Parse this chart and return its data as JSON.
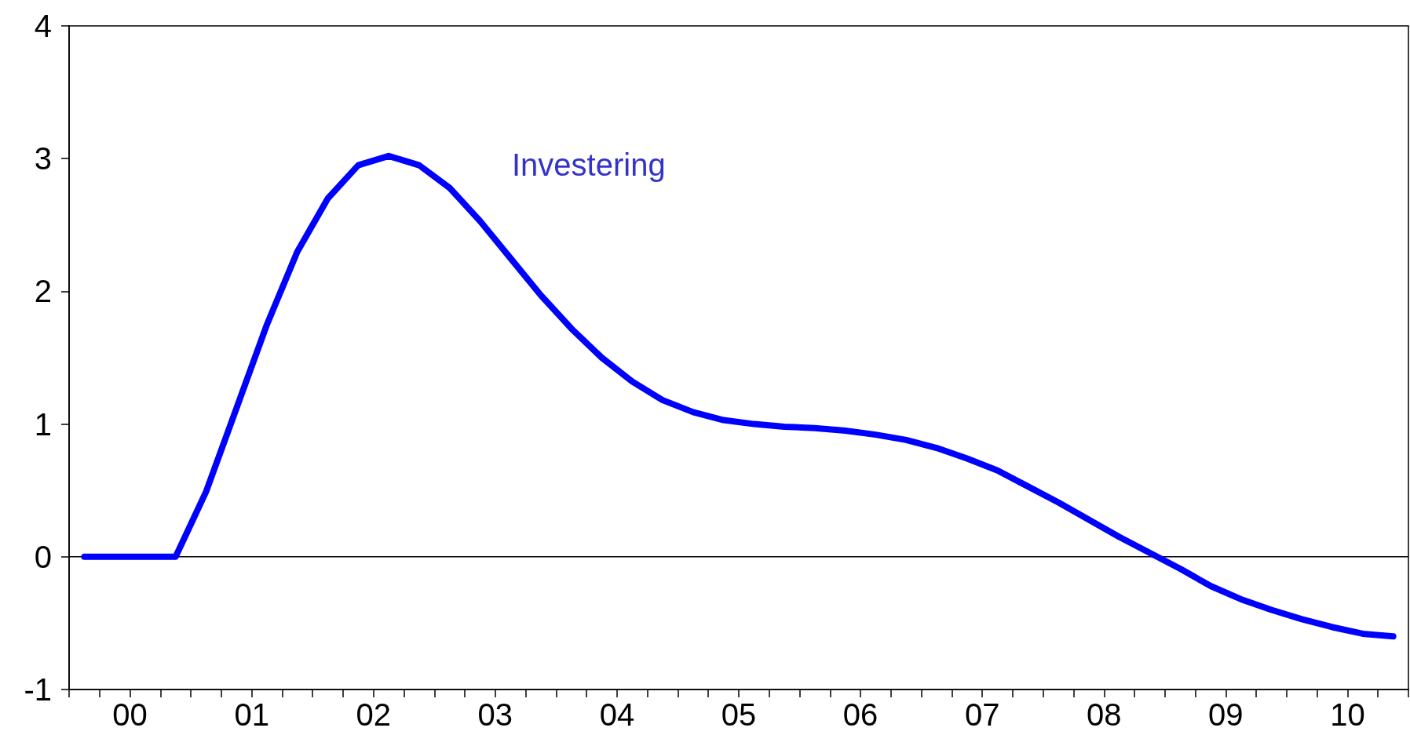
{
  "chart_data": {
    "type": "line",
    "x": [
      -0.375,
      -0.125,
      0.125,
      0.375,
      0.625,
      0.875,
      1.125,
      1.375,
      1.625,
      1.875,
      2.125,
      2.375,
      2.625,
      2.875,
      3.125,
      3.375,
      3.625,
      3.875,
      4.125,
      4.375,
      4.625,
      4.875,
      5.125,
      5.375,
      5.625,
      5.875,
      6.125,
      6.375,
      6.625,
      6.875,
      7.125,
      7.375,
      7.625,
      7.875,
      8.125,
      8.375,
      8.625,
      8.875,
      9.125,
      9.375,
      9.625,
      9.875,
      10.125,
      10.375
    ],
    "series": [
      {
        "color": "#0000ff",
        "values": [
          0,
          0,
          0,
          0,
          0.49,
          1.12,
          1.75,
          2.3,
          2.7,
          2.95,
          3.02,
          2.95,
          2.78,
          2.53,
          2.25,
          1.97,
          1.72,
          1.5,
          1.32,
          1.18,
          1.09,
          1.03,
          1.0,
          0.98,
          0.97,
          0.95,
          0.92,
          0.88,
          0.82,
          0.74,
          0.65,
          0.53,
          0.41,
          0.28,
          0.15,
          0.03,
          -0.09,
          -0.22,
          -0.32,
          -0.4,
          -0.47,
          -0.53,
          -0.58,
          -0.6
        ]
      }
    ],
    "xlim": [
      -0.5,
      10.5
    ],
    "xticks": [
      {
        "value": -0.25,
        "label": null
      },
      {
        "value": 0,
        "label": "00"
      },
      {
        "value": 0.25,
        "label": null
      },
      {
        "value": 0.5,
        "label": null
      },
      {
        "value": 0.75,
        "label": null
      },
      {
        "value": 1,
        "label": "01"
      },
      {
        "value": 1.25,
        "label": null
      },
      {
        "value": 1.5,
        "label": null
      },
      {
        "value": 1.75,
        "label": null
      },
      {
        "value": 2,
        "label": "02"
      },
      {
        "value": 2.25,
        "label": null
      },
      {
        "value": 2.5,
        "label": null
      },
      {
        "value": 2.75,
        "label": null
      },
      {
        "value": 3,
        "label": "03"
      },
      {
        "value": 3.25,
        "label": null
      },
      {
        "value": 3.5,
        "label": null
      },
      {
        "value": 3.75,
        "label": null
      },
      {
        "value": 4,
        "label": "04"
      },
      {
        "value": 4.25,
        "label": null
      },
      {
        "value": 4.5,
        "label": null
      },
      {
        "value": 4.75,
        "label": null
      },
      {
        "value": 5,
        "label": "05"
      },
      {
        "value": 5.25,
        "label": null
      },
      {
        "value": 5.5,
        "label": null
      },
      {
        "value": 5.75,
        "label": null
      },
      {
        "value": 6,
        "label": "06"
      },
      {
        "value": 6.25,
        "label": null
      },
      {
        "value": 6.5,
        "label": null
      },
      {
        "value": 6.75,
        "label": null
      },
      {
        "value": 7,
        "label": "07"
      },
      {
        "value": 7.25,
        "label": null
      },
      {
        "value": 7.5,
        "label": null
      },
      {
        "value": 7.75,
        "label": null
      },
      {
        "value": 8,
        "label": "08"
      },
      {
        "value": 8.25,
        "label": null
      },
      {
        "value": 8.5,
        "label": null
      },
      {
        "value": 8.75,
        "label": null
      },
      {
        "value": 9,
        "label": "09"
      },
      {
        "value": 9.25,
        "label": null
      },
      {
        "value": 9.5,
        "label": null
      },
      {
        "value": 9.75,
        "label": null
      },
      {
        "value": 10,
        "label": "10"
      },
      {
        "value": 10.25,
        "label": null
      }
    ],
    "ylim": [
      -1,
      4
    ],
    "yticks": [
      -1,
      0,
      1,
      2,
      3,
      4
    ],
    "ref_lines": [
      {
        "axis": "y",
        "value": 0,
        "color": "#000000"
      }
    ],
    "annotations": [
      "Investering"
    ],
    "grid": false,
    "line_style": "solid"
  }
}
